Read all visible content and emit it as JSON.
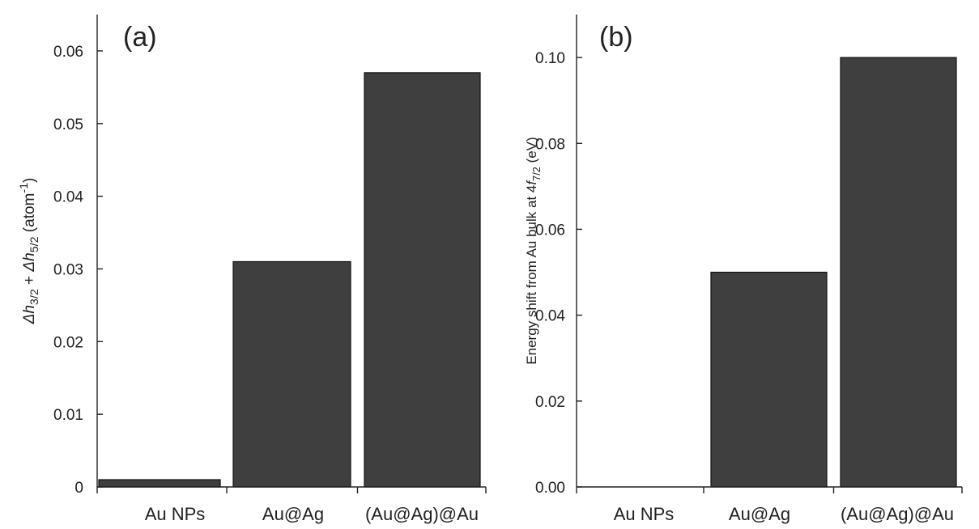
{
  "figure": {
    "bar_color": "#3f3f3f",
    "axis_color": "#222222",
    "background": "#ffffff"
  },
  "chart_data": [
    {
      "type": "bar",
      "panel_label": "(a)",
      "categories": [
        "Au NPs",
        "Au@Ag",
        "(Au@Ag)@Au"
      ],
      "values": [
        0.001,
        0.031,
        0.057
      ],
      "ylabel": {
        "parts": [
          {
            "text": "Δh",
            "style": "italic"
          },
          {
            "text": "3/2",
            "style": "sub"
          },
          {
            "text": " + ",
            "style": "normal"
          },
          {
            "text": "Δh",
            "style": "italic"
          },
          {
            "text": "5/2",
            "style": "sub"
          },
          {
            "text": " (atom",
            "style": "normal"
          },
          {
            "text": "-1",
            "style": "sup"
          },
          {
            "text": ")",
            "style": "normal"
          }
        ]
      },
      "xlabel": "",
      "ylim": [
        0,
        0.065
      ],
      "yticks": [
        0,
        0.01,
        0.02,
        0.03,
        0.04,
        0.05,
        0.06
      ],
      "ytick_labels": [
        "0",
        "0.01",
        "0.02",
        "0.03",
        "0.04",
        "0.05",
        "0.06"
      ],
      "grid": false,
      "legend": "none"
    },
    {
      "type": "bar",
      "panel_label": "(b)",
      "categories": [
        "Au NPs",
        "Au@Ag",
        "(Au@Ag)@Au"
      ],
      "values": [
        0.0,
        0.05,
        0.1
      ],
      "ylabel": {
        "parts": [
          {
            "text": "Energy shift from Au bulk at 4",
            "style": "normal"
          },
          {
            "text": "f",
            "style": "italic"
          },
          {
            "text": "7/2",
            "style": "sub"
          },
          {
            "text": " (eV)",
            "style": "normal"
          }
        ]
      },
      "xlabel": "",
      "ylim": [
        0,
        0.11
      ],
      "yticks": [
        0,
        0.02,
        0.04,
        0.06,
        0.08,
        0.1
      ],
      "ytick_labels": [
        "0.00",
        "0.02",
        "0.04",
        "0.06",
        "0.08",
        "0.10"
      ],
      "grid": false,
      "legend": "none"
    }
  ]
}
